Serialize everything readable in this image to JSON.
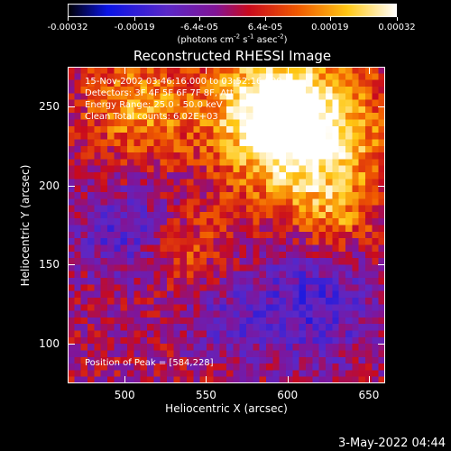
{
  "chart_data": {
    "type": "heatmap",
    "title": "Reconstructed RHESSI Image",
    "xlabel": "Heliocentric X (arcsec)",
    "ylabel": "Heliocentric Y (arcsec)",
    "xlim": [
      465,
      660
    ],
    "ylim": [
      75,
      275
    ],
    "x_ticks": [
      500,
      550,
      600,
      650
    ],
    "y_ticks": [
      100,
      150,
      200,
      250
    ],
    "colorbar": {
      "range": [
        -0.00032,
        0.00032
      ],
      "tick_values": [
        -0.00032,
        -0.00019,
        -6.4e-05,
        6.4e-05,
        0.00019,
        0.00032
      ],
      "tick_labels": [
        "-0.00032",
        "-0.00019",
        "-6.4e-05",
        "6.4e-05",
        "0.00019",
        "0.00032"
      ],
      "unit_text": "(photons cm",
      "unit_exp1": "-2",
      "unit_mid": " s",
      "unit_exp2": "-1",
      "unit_mid2": " asec",
      "unit_exp3": "-2",
      "unit_end": ")"
    },
    "annotations": {
      "time_range": "15-Nov-2002 03:46:16.000 to 03:52:16.000",
      "detectors": "Detectors: 3F 4F 5F 6F 7F 8F, Att",
      "energy": "Energy Range: 25.0 - 50.0 keV",
      "method": "Clean    Total counts: 6.02E+03",
      "peak": "Position of Peak = [584,228]"
    },
    "peak": [
      584,
      228
    ],
    "bright_regions": [
      {
        "x": 610,
        "y": 232,
        "sigma": 32,
        "amp": 0.00036
      },
      {
        "x": 585,
        "y": 252,
        "sigma": 22,
        "amp": 0.0002
      },
      {
        "x": 510,
        "y": 250,
        "sigma": 24,
        "amp": 0.00018
      },
      {
        "x": 630,
        "y": 180,
        "sigma": 16,
        "amp": 0.00012
      },
      {
        "x": 540,
        "y": 160,
        "sigma": 18,
        "amp": 0.0001
      }
    ],
    "dim_regions": [
      {
        "x": 500,
        "y": 170,
        "sigma": 22,
        "amp": -0.00012
      },
      {
        "x": 615,
        "y": 125,
        "sigma": 28,
        "amp": -0.00014
      },
      {
        "x": 560,
        "y": 115,
        "sigma": 18,
        "amp": -8e-05
      }
    ]
  },
  "footer": {
    "date": "3-May-2022 04:44"
  }
}
